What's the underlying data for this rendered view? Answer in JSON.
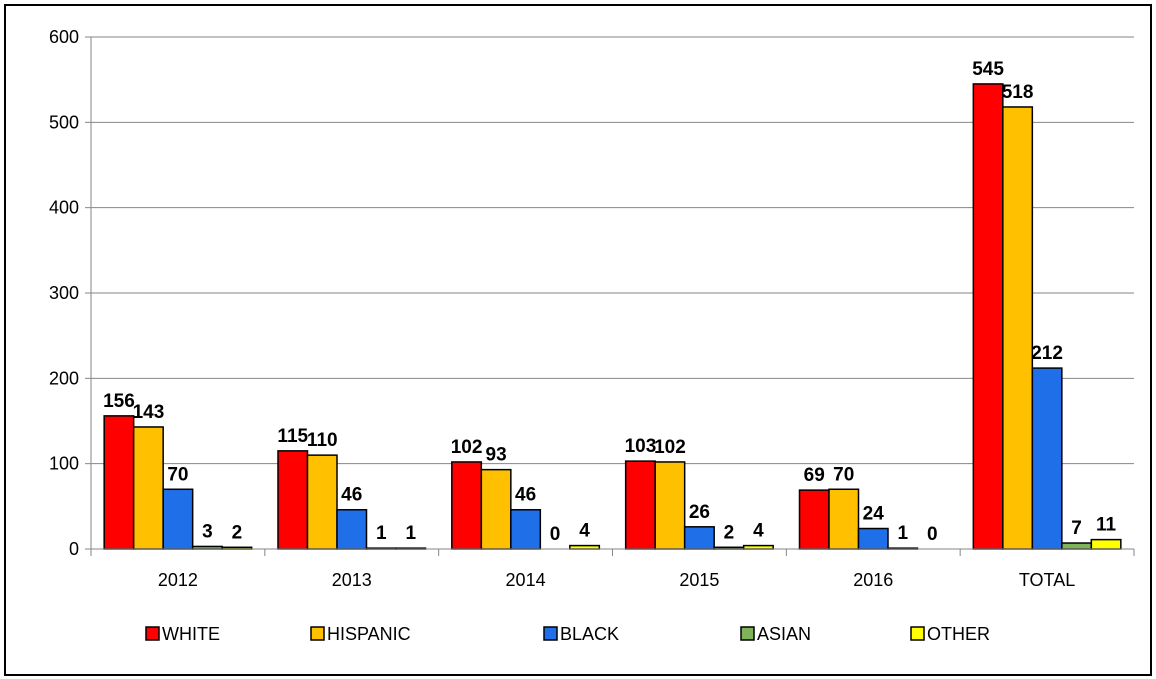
{
  "chart_data": {
    "type": "bar",
    "categories": [
      "2012",
      "2013",
      "2014",
      "2015",
      "2016",
      "TOTAL"
    ],
    "series": [
      {
        "name": "WHITE",
        "color": "#ff0000",
        "values": [
          156,
          115,
          102,
          103,
          69,
          545
        ]
      },
      {
        "name": "HISPANIC",
        "color": "#ffc000",
        "values": [
          143,
          110,
          93,
          102,
          70,
          518
        ]
      },
      {
        "name": "BLACK",
        "color": "#1f6fe8",
        "values": [
          70,
          46,
          46,
          26,
          24,
          212
        ]
      },
      {
        "name": "ASIAN",
        "color": "#7fb35a",
        "values": [
          3,
          1,
          0,
          2,
          1,
          7
        ]
      },
      {
        "name": "OTHER",
        "color": "#ffff00",
        "values": [
          2,
          1,
          4,
          4,
          0,
          11
        ]
      }
    ],
    "ylim": [
      0,
      600
    ],
    "yticks": [
      0,
      100,
      200,
      300,
      400,
      500,
      600
    ],
    "grid": true,
    "legend": "bottom",
    "title": "",
    "xlabel": "",
    "ylabel": ""
  }
}
